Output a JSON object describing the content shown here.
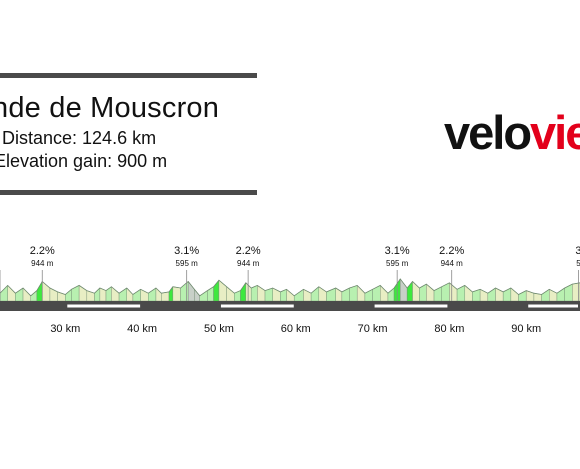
{
  "header": {
    "title": "nde de Mouscron",
    "distance": "Distance: 124.6 km",
    "elevation": "Elevation gain: 900 m"
  },
  "logo": {
    "part_dark": "velo",
    "part_red": "vie"
  },
  "colors": {
    "road": "#4a4a4a",
    "green_steep": "#3ee83e",
    "green_light": "#b8f0b0",
    "cream": "#e8eec4",
    "grey": "#c8d0c8",
    "brand_red": "#e3001b"
  },
  "chart_data": {
    "type": "area",
    "title": "",
    "xlabel": "",
    "ylabel": "",
    "x_unit": "km",
    "xlim": [
      21.5,
      97
    ],
    "x_ticks": [
      30,
      40,
      50,
      60,
      70,
      80,
      90
    ],
    "x_tick_labels": [
      "30 km",
      "40 km",
      "50 km",
      "60 km",
      "70 km",
      "80 km",
      "90 km"
    ],
    "profile": [
      [
        21.5,
        0.3
      ],
      [
        22.5,
        0.6
      ],
      [
        23.5,
        0.3
      ],
      [
        24.5,
        0.5
      ],
      [
        25.5,
        0.2
      ],
      [
        26.3,
        0.4
      ],
      [
        27,
        0.75
      ],
      [
        28,
        0.5
      ],
      [
        29,
        0.35
      ],
      [
        30,
        0.25
      ],
      [
        30.8,
        0.45
      ],
      [
        31.8,
        0.6
      ],
      [
        32.8,
        0.4
      ],
      [
        33.8,
        0.3
      ],
      [
        34.5,
        0.5
      ],
      [
        35.3,
        0.4
      ],
      [
        36,
        0.55
      ],
      [
        37,
        0.3
      ],
      [
        38,
        0.5
      ],
      [
        38.8,
        0.25
      ],
      [
        39.8,
        0.45
      ],
      [
        40.8,
        0.3
      ],
      [
        41.8,
        0.5
      ],
      [
        42.5,
        0.3
      ],
      [
        43.5,
        0.35
      ],
      [
        44,
        0.55
      ],
      [
        45,
        0.5
      ],
      [
        46,
        0.75
      ],
      [
        46.8,
        0.45
      ],
      [
        47.5,
        0.2
      ],
      [
        48.5,
        0.4
      ],
      [
        49.3,
        0.55
      ],
      [
        50,
        0.8
      ],
      [
        51,
        0.55
      ],
      [
        52,
        0.3
      ],
      [
        52.8,
        0.4
      ],
      [
        53.5,
        0.7
      ],
      [
        54.2,
        0.5
      ],
      [
        55,
        0.6
      ],
      [
        56,
        0.4
      ],
      [
        57,
        0.5
      ],
      [
        58,
        0.35
      ],
      [
        58.8,
        0.45
      ],
      [
        59.8,
        0.2
      ],
      [
        61,
        0.45
      ],
      [
        62,
        0.3
      ],
      [
        63,
        0.55
      ],
      [
        64,
        0.35
      ],
      [
        65.2,
        0.5
      ],
      [
        66,
        0.35
      ],
      [
        67,
        0.5
      ],
      [
        68,
        0.6
      ],
      [
        69,
        0.3
      ],
      [
        70,
        0.45
      ],
      [
        71,
        0.6
      ],
      [
        72,
        0.3
      ],
      [
        72.8,
        0.5
      ],
      [
        73.6,
        0.85
      ],
      [
        74.5,
        0.5
      ],
      [
        75.2,
        0.75
      ],
      [
        76.1,
        0.5
      ],
      [
        77,
        0.65
      ],
      [
        78,
        0.4
      ],
      [
        79,
        0.55
      ],
      [
        80,
        0.7
      ],
      [
        81,
        0.45
      ],
      [
        82,
        0.6
      ],
      [
        83,
        0.35
      ],
      [
        84,
        0.45
      ],
      [
        85,
        0.3
      ],
      [
        86,
        0.5
      ],
      [
        87,
        0.35
      ],
      [
        88,
        0.5
      ],
      [
        89,
        0.25
      ],
      [
        90,
        0.4
      ],
      [
        91,
        0.3
      ],
      [
        92,
        0.25
      ],
      [
        93,
        0.45
      ],
      [
        94,
        0.3
      ],
      [
        95,
        0.5
      ],
      [
        96,
        0.65
      ],
      [
        97,
        0.7
      ]
    ],
    "climbs": [
      {
        "km": 21.5,
        "gradient": "",
        "altitude": "",
        "label_visible": false
      },
      {
        "km": 27.0,
        "gradient": "2.2%",
        "altitude": "944 m",
        "label_visible": true
      },
      {
        "km": 45.8,
        "gradient": "3.1%",
        "altitude": "595 m",
        "label_visible": true
      },
      {
        "km": 53.8,
        "gradient": "2.2%",
        "altitude": "944 m",
        "label_visible": true
      },
      {
        "km": 73.2,
        "gradient": "3.1%",
        "altitude": "595 m",
        "label_visible": true
      },
      {
        "km": 80.3,
        "gradient": "2.2%",
        "altitude": "944 m",
        "label_visible": true
      },
      {
        "km": 96.8,
        "gradient": "3",
        "altitude": "5",
        "label_visible": true
      }
    ]
  }
}
